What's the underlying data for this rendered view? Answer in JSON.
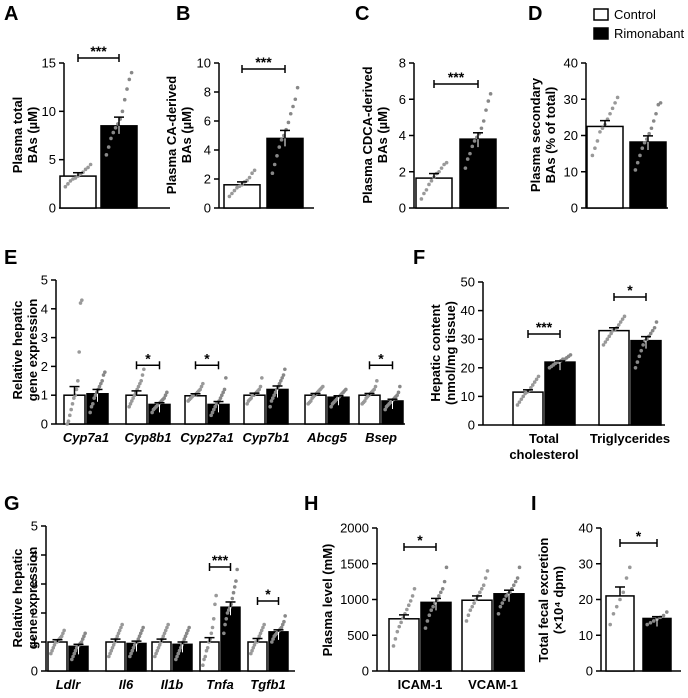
{
  "legend": {
    "items": [
      {
        "label": "Control",
        "color": "#ffffff"
      },
      {
        "label": "Rimonabant",
        "color": "#000000"
      }
    ]
  },
  "chart_data": [
    {
      "panel": "A",
      "type": "bar",
      "categories": [
        "Control",
        "Rimonabant"
      ],
      "values": [
        3.3,
        8.5
      ],
      "errors": [
        0.35,
        0.9
      ],
      "ylabel": [
        "Plasma total",
        "BAs (µM)"
      ],
      "ylim": [
        0,
        15
      ],
      "yticks": [
        0,
        5,
        10,
        15
      ],
      "significance": [
        "***"
      ],
      "points": [
        [
          2.2,
          2.5,
          2.8,
          3.0,
          3.1,
          3.3,
          3.5,
          3.7,
          4.0,
          4.2,
          4.5
        ],
        [
          5.5,
          6.3,
          7.2,
          7.8,
          8.3,
          8.7,
          9.2,
          10.0,
          11.2,
          12.3,
          13.3,
          14.0
        ]
      ]
    },
    {
      "panel": "B",
      "type": "bar",
      "categories": [
        "Control",
        "Rimonabant"
      ],
      "values": [
        1.6,
        4.8
      ],
      "errors": [
        0.2,
        0.55
      ],
      "ylabel": [
        "Plasma CA-derived",
        "BAs (µM)"
      ],
      "ylim": [
        0,
        10
      ],
      "yticks": [
        0,
        2,
        4,
        6,
        8,
        10
      ],
      "significance": [
        "***"
      ],
      "points": [
        [
          0.8,
          1.0,
          1.2,
          1.4,
          1.5,
          1.6,
          1.8,
          1.9,
          2.1,
          2.4,
          2.6
        ],
        [
          2.4,
          3.0,
          3.6,
          4.2,
          4.7,
          5.0,
          5.4,
          5.9,
          6.5,
          7.0,
          7.5,
          8.3
        ]
      ]
    },
    {
      "panel": "C",
      "type": "bar",
      "categories": [
        "Control",
        "Rimonabant"
      ],
      "values": [
        1.65,
        3.8
      ],
      "errors": [
        0.25,
        0.35
      ],
      "ylabel": [
        "Plasma CDCA-derived",
        "BAs (µM)"
      ],
      "ylim": [
        0,
        8
      ],
      "yticks": [
        0,
        2,
        4,
        6,
        8
      ],
      "significance": [
        "***"
      ],
      "points": [
        [
          0.5,
          0.8,
          1.0,
          1.3,
          1.5,
          1.7,
          1.9,
          2.0,
          2.2,
          2.4,
          2.5
        ],
        [
          2.2,
          2.7,
          3.0,
          3.4,
          3.7,
          3.9,
          4.1,
          4.4,
          4.8,
          5.4,
          5.9,
          6.3
        ]
      ]
    },
    {
      "panel": "D",
      "type": "bar",
      "categories": [
        "Control",
        "Rimonabant"
      ],
      "values": [
        22.5,
        18.2
      ],
      "errors": [
        1.6,
        1.7
      ],
      "ylabel": [
        "Plasma secondary",
        "BAs (% of total)"
      ],
      "ylim": [
        0,
        40
      ],
      "yticks": [
        0,
        10,
        20,
        30,
        40
      ],
      "significance": [],
      "points": [
        [
          14.5,
          16.5,
          18.5,
          21,
          22,
          23,
          24.5,
          26,
          27.5,
          29,
          30.5
        ],
        [
          10.5,
          12.5,
          14.5,
          16.5,
          18,
          19,
          20.5,
          22,
          24,
          26,
          28.5,
          29
        ]
      ]
    },
    {
      "panel": "E",
      "type": "bar",
      "categories": [
        "Cyp7a1",
        "Cyp8b1",
        "Cyp27a1",
        "Cyp7b1",
        "Abcg5",
        "Bsep"
      ],
      "series": [
        {
          "name": "Control",
          "values": [
            1.0,
            1.0,
            0.98,
            1.0,
            1.0,
            1.0
          ],
          "errors": [
            0.3,
            0.15,
            0.07,
            0.07,
            0.06,
            0.06
          ]
        },
        {
          "name": "Rimonabant",
          "values": [
            1.05,
            0.68,
            0.68,
            1.2,
            0.93,
            0.8
          ],
          "errors": [
            0.15,
            0.06,
            0.1,
            0.12,
            0.05,
            0.06
          ]
        }
      ],
      "ylabel": [
        "Relative hepatic",
        "gene expression"
      ],
      "ylim": [
        0,
        5
      ],
      "yticks": [
        0,
        1,
        2,
        3,
        4,
        5
      ],
      "significance": [
        {
          "category": "Cyp8b1",
          "label": "*"
        },
        {
          "category": "Cyp27a1",
          "label": "*"
        },
        {
          "category": "Bsep",
          "label": "*"
        }
      ],
      "points": [
        [
          [
            0.0,
            0.1,
            0.3,
            0.5,
            0.7,
            0.9,
            1.0,
            1.2,
            1.5,
            2.5,
            4.2,
            4.3
          ],
          [
            0.4,
            0.6,
            0.7,
            0.9,
            1.0,
            1.1,
            1.2,
            1.3,
            1.4,
            1.5,
            1.7,
            1.8
          ]
        ],
        [
          [
            0.6,
            0.7,
            0.8,
            0.9,
            1.0,
            1.1,
            1.2,
            1.3,
            1.4,
            1.5,
            1.7,
            1.9
          ],
          [
            0.4,
            0.5,
            0.55,
            0.6,
            0.65,
            0.7,
            0.75,
            0.8,
            0.85,
            0.9,
            1.0,
            1.1
          ]
        ],
        [
          [
            0.8,
            0.85,
            0.9,
            0.95,
            1.0,
            1.0,
            1.05,
            1.1,
            1.15,
            1.2,
            1.3,
            1.4
          ],
          [
            0.3,
            0.4,
            0.5,
            0.6,
            0.7,
            0.75,
            0.8,
            0.9,
            1.0,
            1.1,
            1.2,
            1.6
          ]
        ],
        [
          [
            0.7,
            0.8,
            0.85,
            0.9,
            1.0,
            1.0,
            1.05,
            1.1,
            1.15,
            1.2,
            1.3,
            1.6
          ],
          [
            0.6,
            0.8,
            0.9,
            1.0,
            1.1,
            1.2,
            1.3,
            1.4,
            1.5,
            1.6,
            1.7,
            1.9
          ]
        ],
        [
          [
            0.7,
            0.75,
            0.8,
            0.9,
            0.95,
            1.0,
            1.05,
            1.1,
            1.15,
            1.2,
            1.25,
            1.3
          ],
          [
            0.6,
            0.7,
            0.75,
            0.8,
            0.85,
            0.9,
            0.95,
            1.0,
            1.05,
            1.1,
            1.15,
            1.2
          ]
        ],
        [
          [
            0.7,
            0.75,
            0.8,
            0.9,
            0.95,
            1.0,
            1.05,
            1.1,
            1.15,
            1.2,
            1.3,
            1.5
          ],
          [
            0.5,
            0.6,
            0.65,
            0.7,
            0.75,
            0.8,
            0.85,
            0.9,
            0.95,
            1.0,
            1.1,
            1.3
          ]
        ]
      ]
    },
    {
      "panel": "F",
      "type": "bar",
      "categories": [
        "Total cholesterol",
        "Triglycerides"
      ],
      "series": [
        {
          "name": "Control",
          "values": [
            11.5,
            33
          ],
          "errors": [
            0.8,
            1.0
          ]
        },
        {
          "name": "Rimonabant",
          "values": [
            22,
            29.5
          ],
          "errors": [
            0.4,
            1.4
          ]
        }
      ],
      "ylabel": [
        "Hepatic content",
        "(nmol/mg tissue)"
      ],
      "ylim": [
        0,
        50
      ],
      "yticks": [
        0,
        10,
        20,
        30,
        40,
        50
      ],
      "significance": [
        {
          "category": "Total cholesterol",
          "label": "***"
        },
        {
          "category": "Triglycerides",
          "label": "*"
        }
      ],
      "points": [
        [
          [
            7,
            8,
            9,
            10,
            11,
            11.5,
            12,
            13,
            14,
            15,
            16,
            17
          ],
          [
            20,
            20.5,
            21,
            21.5,
            22,
            22,
            22.5,
            23,
            23,
            23.5,
            24,
            24.5
          ]
        ],
        [
          [
            28,
            29,
            30,
            31,
            32,
            33,
            33.5,
            34,
            35,
            36,
            37,
            38
          ],
          [
            20,
            22,
            24,
            26,
            28,
            29.5,
            30,
            31,
            32,
            33,
            34,
            36
          ]
        ]
      ]
    },
    {
      "panel": "G",
      "type": "bar",
      "categories": [
        "Ldlr",
        "Il6",
        "Il1b",
        "Tnfa",
        "Tgfb1"
      ],
      "series": [
        {
          "name": "Control",
          "values": [
            1.0,
            1.0,
            1.0,
            1.0,
            1.0
          ],
          "errors": [
            0.08,
            0.1,
            0.1,
            0.15,
            0.12
          ]
        },
        {
          "name": "Rimonabant",
          "values": [
            0.85,
            0.95,
            0.92,
            2.2,
            1.35
          ],
          "errors": [
            0.07,
            0.08,
            0.08,
            0.18,
            0.07
          ]
        }
      ],
      "ylabel": [
        "Relative hepatic",
        "gene expression"
      ],
      "ylim": [
        0,
        5
      ],
      "yticks": [
        0,
        1,
        2,
        3,
        4,
        5
      ],
      "significance": [
        {
          "category": "Tnfa",
          "label": "***"
        },
        {
          "category": "Tgfb1",
          "label": "*"
        }
      ],
      "points": [
        [
          [
            0.6,
            0.7,
            0.8,
            0.9,
            1.0,
            1.0,
            1.05,
            1.1,
            1.15,
            1.2,
            1.3,
            1.4
          ],
          [
            0.4,
            0.5,
            0.6,
            0.7,
            0.8,
            0.85,
            0.9,
            0.95,
            1.0,
            1.1,
            1.2,
            1.3
          ]
        ],
        [
          [
            0.5,
            0.6,
            0.7,
            0.8,
            0.9,
            1.0,
            1.1,
            1.2,
            1.3,
            1.4,
            1.5,
            1.6
          ],
          [
            0.5,
            0.6,
            0.7,
            0.8,
            0.9,
            0.95,
            1.0,
            1.1,
            1.2,
            1.3,
            1.4,
            1.5
          ]
        ],
        [
          [
            0.5,
            0.6,
            0.7,
            0.8,
            0.9,
            1.0,
            1.1,
            1.2,
            1.3,
            1.4,
            1.5,
            1.6
          ],
          [
            0.4,
            0.5,
            0.6,
            0.7,
            0.8,
            0.9,
            1.0,
            1.1,
            1.2,
            1.3,
            1.4,
            1.5
          ]
        ],
        [
          [
            0.2,
            0.4,
            0.5,
            0.7,
            0.8,
            1.0,
            1.1,
            1.3,
            1.5,
            1.8,
            2.3,
            2.6
          ],
          [
            1.3,
            1.6,
            1.8,
            2.0,
            2.1,
            2.2,
            2.3,
            2.5,
            2.7,
            2.9,
            3.1,
            3.5
          ]
        ],
        [
          [
            0.6,
            0.7,
            0.8,
            0.9,
            1.0,
            1.0,
            1.1,
            1.2,
            1.3,
            1.4,
            1.5,
            1.6
          ],
          [
            1.0,
            1.1,
            1.2,
            1.25,
            1.3,
            1.35,
            1.4,
            1.45,
            1.5,
            1.6,
            1.7,
            1.9
          ]
        ]
      ]
    },
    {
      "panel": "H",
      "type": "bar",
      "categories": [
        "ICAM-1",
        "VCAM-1"
      ],
      "series": [
        {
          "name": "Control",
          "values": [
            730,
            990
          ],
          "errors": [
            55,
            60
          ]
        },
        {
          "name": "Rimonabant",
          "values": [
            960,
            1080
          ],
          "errors": [
            55,
            50
          ]
        }
      ],
      "ylabel": [
        "Plasma level (mM)"
      ],
      "ylim": [
        0,
        2000
      ],
      "yticks": [
        0,
        500,
        1000,
        1500,
        2000
      ],
      "significance": [
        {
          "category": "ICAM-1",
          "label": "*"
        }
      ],
      "points": [
        [
          [
            350,
            450,
            550,
            620,
            680,
            740,
            800,
            860,
            920,
            980,
            1050,
            1150
          ],
          [
            600,
            700,
            780,
            850,
            900,
            950,
            1000,
            1050,
            1100,
            1150,
            1250,
            1450
          ]
        ],
        [
          [
            700,
            780,
            850,
            900,
            950,
            1000,
            1050,
            1100,
            1150,
            1200,
            1300,
            1400
          ],
          [
            800,
            900,
            950,
            1000,
            1050,
            1080,
            1100,
            1150,
            1200,
            1250,
            1300,
            1450
          ]
        ]
      ]
    },
    {
      "panel": "I",
      "type": "bar",
      "categories": [
        "Control",
        "Rimonabant"
      ],
      "values": [
        21,
        14.7
      ],
      "errors": [
        2.5,
        0.5
      ],
      "ylabel": [
        "Total fecal excretion",
        "(×10⁴ dpm)"
      ],
      "ylim": [
        0,
        40
      ],
      "yticks": [
        0,
        10,
        20,
        30,
        40
      ],
      "significance": [
        "*"
      ],
      "points": [
        [
          13,
          16,
          18,
          20,
          22,
          26,
          29
        ],
        [
          13,
          13.5,
          14,
          14.5,
          15,
          15.5,
          16.5
        ]
      ]
    }
  ]
}
